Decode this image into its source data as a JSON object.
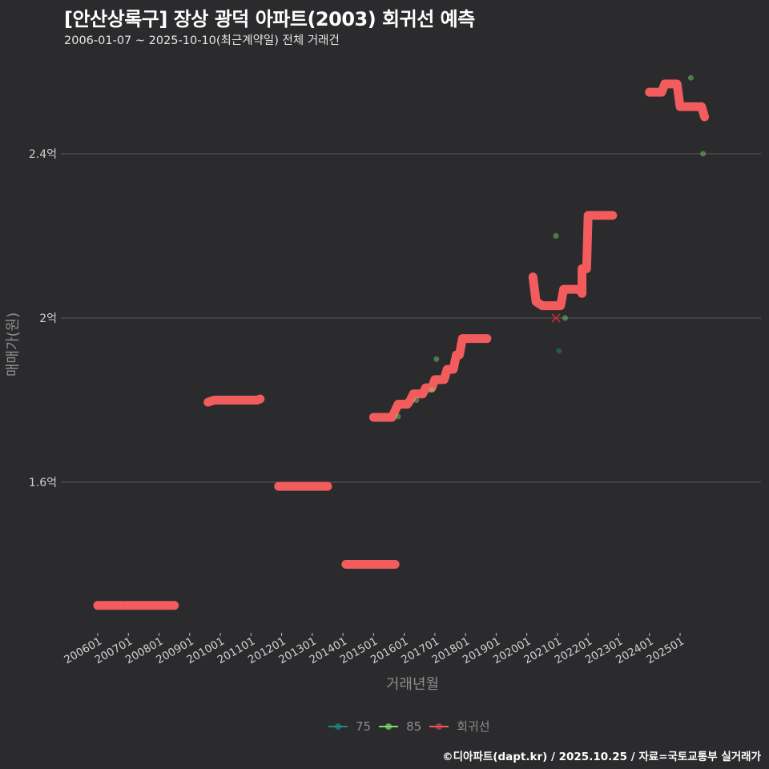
{
  "header": {
    "title": "[안산상록구] 장상 광덕 아파트(2003) 회귀선 예측",
    "subtitle": "2006-01-07 ~ 2025-10-10(최근계약일) 전체 거래건"
  },
  "caption": "©디아파트(dapt.kr) / 2025.10.25 / 자료=국토교통부 실거래가",
  "colors": {
    "background": "#2b2a2c",
    "gridline": "#5a5a5a",
    "regression": "#f25c5c",
    "area_75": "#1f8a86",
    "area_85": "#7ddc6a"
  },
  "legend": {
    "items": [
      {
        "label": "75",
        "color": "#1f8a86"
      },
      {
        "label": "85",
        "color": "#7ddc6a"
      },
      {
        "label": "회귀선",
        "color": "#f25c5c"
      }
    ]
  },
  "chart_data": {
    "type": "line",
    "title": "[안산상록구] 장상 광덕 아파트(2003) 회귀선 예측",
    "subtitle": "2006-01-07 ~ 2025-10-10(최근계약일) 전체 거래건",
    "xlabel": "거래년월",
    "ylabel": "매매가(원)",
    "x_ticks": [
      "200601",
      "200701",
      "200801",
      "200901",
      "201001",
      "201101",
      "201201",
      "201301",
      "201401",
      "201501",
      "201601",
      "201701",
      "201801",
      "201901",
      "202001",
      "202101",
      "202201",
      "202301",
      "202401",
      "202501"
    ],
    "y_ticks": [
      {
        "value": 1.6,
        "label": "1.6억"
      },
      {
        "value": 2.0,
        "label": "2억"
      },
      {
        "value": 2.4,
        "label": "2.4억"
      }
    ],
    "ylim": [
      1.2,
      2.8
    ],
    "xlim": [
      2005.5,
      2026.3
    ],
    "grid": "horizontal-major",
    "legend_position": "bottom",
    "unit": "억원",
    "series": [
      {
        "name": "회귀선",
        "kind": "line",
        "color": "#f25c5c",
        "segments": [
          [
            [
              2006.0,
              1.3
            ],
            [
              2006.8,
              1.3
            ]
          ],
          [
            [
              2006.9,
              1.3
            ],
            [
              2008.5,
              1.3
            ]
          ],
          [
            [
              2009.6,
              1.795
            ],
            [
              2009.8,
              1.8
            ],
            [
              2011.2,
              1.8
            ],
            [
              2011.3,
              1.803
            ]
          ],
          [
            [
              2011.9,
              1.59
            ],
            [
              2013.5,
              1.59
            ]
          ],
          [
            [
              2014.1,
              1.4
            ],
            [
              2015.7,
              1.4
            ]
          ],
          [
            [
              2015.0,
              1.758
            ],
            [
              2015.6,
              1.758
            ],
            [
              2015.8,
              1.79
            ],
            [
              2016.1,
              1.79
            ],
            [
              2016.2,
              1.8
            ],
            [
              2016.3,
              1.815
            ],
            [
              2016.6,
              1.815
            ],
            [
              2016.7,
              1.83
            ],
            [
              2016.9,
              1.83
            ],
            [
              2017.0,
              1.85
            ],
            [
              2017.3,
              1.85
            ],
            [
              2017.4,
              1.875
            ],
            [
              2017.6,
              1.875
            ],
            [
              2017.7,
              1.91
            ],
            [
              2017.8,
              1.91
            ],
            [
              2017.9,
              1.95
            ],
            [
              2018.7,
              1.95
            ]
          ],
          [
            [
              2020.2,
              2.1
            ],
            [
              2020.3,
              2.04
            ],
            [
              2020.5,
              2.03
            ],
            [
              2021.1,
              2.03
            ],
            [
              2021.2,
              2.07
            ],
            [
              2021.7,
              2.07
            ],
            [
              2021.8,
              2.06
            ],
            [
              2021.8,
              2.12
            ],
            [
              2021.95,
              2.12
            ],
            [
              2022.0,
              2.25
            ],
            [
              2022.8,
              2.25
            ]
          ],
          [
            [
              2024.0,
              2.55
            ],
            [
              2024.4,
              2.55
            ],
            [
              2024.5,
              2.57
            ],
            [
              2024.9,
              2.57
            ],
            [
              2025.0,
              2.515
            ],
            [
              2025.7,
              2.515
            ],
            [
              2025.8,
              2.49
            ]
          ]
        ]
      },
      {
        "name": "85",
        "kind": "scatter",
        "color": "#7ddc6a",
        "points": [
          [
            2015.8,
            1.76
          ],
          [
            2016.4,
            1.8
          ],
          [
            2016.9,
            1.825
          ],
          [
            2017.05,
            1.9
          ],
          [
            2020.95,
            2.2
          ],
          [
            2021.25,
            2.0
          ],
          [
            2025.35,
            2.585
          ],
          [
            2025.75,
            2.4
          ]
        ]
      },
      {
        "name": "75",
        "kind": "scatter",
        "color": "#1f8a86",
        "points": [
          [
            2021.05,
            1.92
          ]
        ]
      },
      {
        "name": "marker-x",
        "kind": "marker",
        "color": "#e02a2a",
        "points": [
          [
            2020.95,
            2.0
          ]
        ]
      }
    ]
  }
}
